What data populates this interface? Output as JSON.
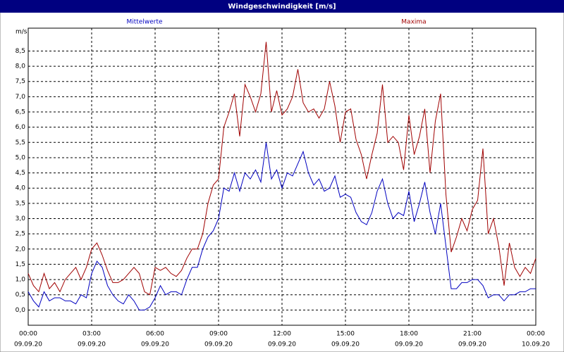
{
  "chart_data": {
    "type": "line",
    "title": "Windgeschwindigkeit [m/s]",
    "y_unit": "m/s",
    "x": [
      0,
      0.25,
      0.5,
      0.75,
      1,
      1.25,
      1.5,
      1.75,
      2,
      2.25,
      2.5,
      2.75,
      3,
      3.25,
      3.5,
      3.75,
      4,
      4.25,
      4.5,
      4.75,
      5,
      5.25,
      5.5,
      5.75,
      6,
      6.25,
      6.5,
      6.75,
      7,
      7.25,
      7.5,
      7.75,
      8,
      8.25,
      8.5,
      8.75,
      9,
      9.25,
      9.5,
      9.75,
      10,
      10.25,
      10.5,
      10.75,
      11,
      11.25,
      11.5,
      11.75,
      12,
      12.25,
      12.5,
      12.75,
      13,
      13.25,
      13.5,
      13.75,
      14,
      14.25,
      14.5,
      14.75,
      15,
      15.25,
      15.5,
      15.75,
      16,
      16.25,
      16.5,
      16.75,
      17,
      17.25,
      17.5,
      17.75,
      18,
      18.25,
      18.5,
      18.75,
      19,
      19.25,
      19.5,
      19.75,
      20,
      20.25,
      20.5,
      20.75,
      21,
      21.25,
      21.5,
      21.75,
      22,
      22.25,
      22.5,
      22.75,
      23,
      23.25,
      23.5,
      23.75,
      24
    ],
    "series": [
      {
        "name": "Mittelwerte",
        "color": "#0000c0",
        "values": [
          0.6,
          0.3,
          0.1,
          0.6,
          0.3,
          0.4,
          0.4,
          0.3,
          0.3,
          0.2,
          0.5,
          0.4,
          1.2,
          1.6,
          1.4,
          0.8,
          0.5,
          0.3,
          0.2,
          0.5,
          0.3,
          0.0,
          0.0,
          0.1,
          0.4,
          0.8,
          0.5,
          0.6,
          0.6,
          0.5,
          1.0,
          1.4,
          1.4,
          2.0,
          2.4,
          2.6,
          3.0,
          4.0,
          3.9,
          4.5,
          3.9,
          4.5,
          4.3,
          4.6,
          4.2,
          5.5,
          4.3,
          4.6,
          4.0,
          4.5,
          4.4,
          4.8,
          5.2,
          4.5,
          4.1,
          4.3,
          3.9,
          4.0,
          4.4,
          3.7,
          3.8,
          3.7,
          3.2,
          2.9,
          2.8,
          3.2,
          3.9,
          4.3,
          3.5,
          3.0,
          3.2,
          3.1,
          3.9,
          2.9,
          3.5,
          4.2,
          3.2,
          2.5,
          3.5,
          2.1,
          0.7,
          0.7,
          0.9,
          0.9,
          1.0,
          1.0,
          0.8,
          0.4,
          0.5,
          0.5,
          0.3,
          0.5,
          0.5,
          0.6,
          0.6,
          0.7,
          0.7
        ]
      },
      {
        "name": "Maxima",
        "color": "#a00000",
        "values": [
          1.2,
          0.8,
          0.6,
          1.2,
          0.7,
          0.9,
          0.6,
          1.0,
          1.2,
          1.4,
          1.0,
          1.4,
          2.0,
          2.2,
          1.8,
          1.3,
          0.9,
          0.9,
          1.0,
          1.2,
          1.4,
          1.2,
          0.6,
          0.5,
          1.4,
          1.3,
          1.4,
          1.2,
          1.1,
          1.3,
          1.7,
          2.0,
          2.0,
          2.5,
          3.5,
          4.1,
          4.3,
          6.0,
          6.5,
          7.1,
          5.7,
          7.4,
          7.0,
          6.5,
          7.1,
          8.8,
          6.5,
          7.2,
          6.4,
          6.6,
          7.0,
          7.9,
          6.8,
          6.5,
          6.6,
          6.3,
          6.6,
          7.5,
          6.7,
          5.5,
          6.5,
          6.6,
          5.6,
          5.1,
          4.3,
          5.1,
          5.8,
          7.4,
          5.5,
          5.7,
          5.5,
          4.6,
          6.4,
          5.1,
          5.7,
          6.6,
          4.5,
          6.2,
          7.1,
          3.8,
          1.9,
          2.4,
          3.0,
          2.6,
          3.3,
          3.6,
          5.3,
          2.5,
          3.0,
          2.1,
          0.8,
          2.2,
          1.4,
          1.1,
          1.4,
          1.2,
          1.7
        ]
      }
    ],
    "xlim": [
      0,
      24
    ],
    "xticks": [
      {
        "value": 0,
        "label": "00:00"
      },
      {
        "value": 3,
        "label": "03:00"
      },
      {
        "value": 6,
        "label": "06:00"
      },
      {
        "value": 9,
        "label": "09:00"
      },
      {
        "value": 12,
        "label": "12:00"
      },
      {
        "value": 15,
        "label": "15:00"
      },
      {
        "value": 18,
        "label": "18:00"
      },
      {
        "value": 21,
        "label": "21:00"
      },
      {
        "value": 24,
        "label": "00:00"
      }
    ],
    "xtick_dates": [
      "09.09.20",
      "09.09.20",
      "09.09.20",
      "09.09.20",
      "09.09.20",
      "09.09.20",
      "09.09.20",
      "09.09.20",
      "10.09.20"
    ],
    "ylim": [
      -0.5,
      9.25
    ],
    "yticks": [
      {
        "value": 0,
        "label": "0,0"
      },
      {
        "value": 0.5,
        "label": "0,5"
      },
      {
        "value": 1,
        "label": "1,0"
      },
      {
        "value": 1.5,
        "label": "1,5"
      },
      {
        "value": 2,
        "label": "2,0"
      },
      {
        "value": 2.5,
        "label": "2,5"
      },
      {
        "value": 3,
        "label": "3,0"
      },
      {
        "value": 3.5,
        "label": "3,5"
      },
      {
        "value": 4,
        "label": "4,0"
      },
      {
        "value": 4.5,
        "label": "4,5"
      },
      {
        "value": 5,
        "label": "5,0"
      },
      {
        "value": 5.5,
        "label": "5,5"
      },
      {
        "value": 6,
        "label": "6,0"
      },
      {
        "value": 6.5,
        "label": "6,5"
      },
      {
        "value": 7,
        "label": "7,0"
      },
      {
        "value": 7.5,
        "label": "7,5"
      },
      {
        "value": 8,
        "label": "8,0"
      },
      {
        "value": 8.5,
        "label": "8,5"
      }
    ],
    "grid": true
  }
}
